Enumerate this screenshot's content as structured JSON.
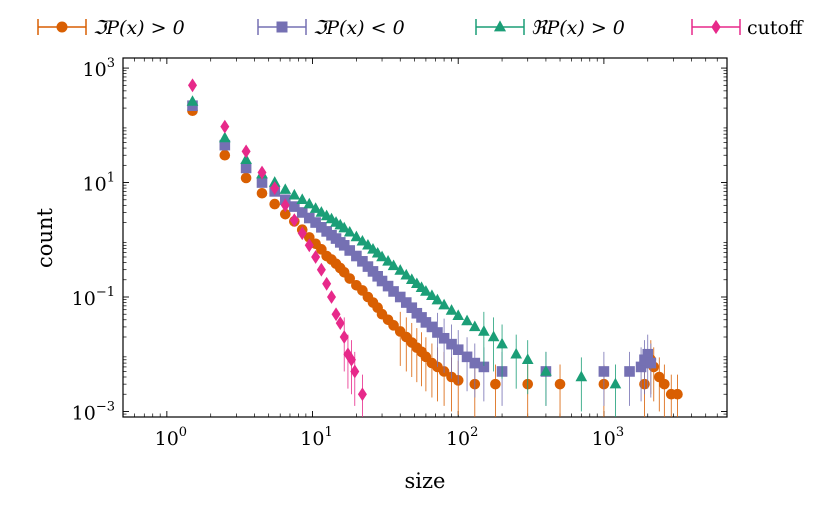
{
  "chart_data": {
    "type": "scatter",
    "xlabel": "size",
    "ylabel": "count",
    "x_scale": "log",
    "y_scale": "log",
    "xlim": [
      0.5,
      7000
    ],
    "ylim": [
      0.0008,
      1500
    ],
    "x_ticks": [
      {
        "value": 1,
        "base": "10",
        "exp": "0"
      },
      {
        "value": 10,
        "base": "10",
        "exp": "1"
      },
      {
        "value": 100,
        "base": "10",
        "exp": "2"
      },
      {
        "value": 1000,
        "base": "10",
        "exp": "3"
      }
    ],
    "y_ticks": [
      {
        "value": 0.001,
        "base": "10",
        "exp": "−3"
      },
      {
        "value": 0.1,
        "base": "10",
        "exp": "−1"
      },
      {
        "value": 10,
        "base": "10",
        "exp": "1"
      },
      {
        "value": 1000,
        "base": "10",
        "exp": "3"
      }
    ],
    "legend_position": "top",
    "series": [
      {
        "name": "ℑP(x) > 0",
        "color": "#d95f02",
        "marker": "circle",
        "points": [
          [
            1.5,
            180
          ],
          [
            2.5,
            30
          ],
          [
            3.5,
            12
          ],
          [
            4.5,
            6.5
          ],
          [
            5.5,
            4.2
          ],
          [
            6.5,
            2.8
          ],
          [
            7.5,
            2.1
          ],
          [
            8.5,
            1.5
          ],
          [
            9.5,
            1.1
          ],
          [
            10.5,
            0.85
          ],
          [
            11.5,
            0.68
          ],
          [
            12.5,
            0.52
          ],
          [
            13.5,
            0.45
          ],
          [
            14.5,
            0.38
          ],
          [
            15.5,
            0.32
          ],
          [
            16.5,
            0.27
          ],
          [
            18,
            0.21
          ],
          [
            20,
            0.16
          ],
          [
            22,
            0.13
          ],
          [
            24,
            0.1
          ],
          [
            26,
            0.08
          ],
          [
            28,
            0.065
          ],
          [
            30,
            0.05
          ],
          [
            33,
            0.04
          ],
          [
            36,
            0.032
          ],
          [
            40,
            0.025
          ],
          [
            44,
            0.02
          ],
          [
            48,
            0.016
          ],
          [
            52,
            0.013
          ],
          [
            56,
            0.011
          ],
          [
            60,
            0.009
          ],
          [
            66,
            0.007
          ],
          [
            72,
            0.006
          ],
          [
            80,
            0.005
          ],
          [
            90,
            0.004
          ],
          [
            100,
            0.0035
          ],
          [
            130,
            0.003
          ],
          [
            180,
            0.003
          ],
          [
            300,
            0.003
          ],
          [
            500,
            0.003
          ],
          [
            1000,
            0.003
          ],
          [
            1900,
            0.003
          ],
          [
            2100,
            0.008
          ],
          [
            2200,
            0.006
          ],
          [
            2400,
            0.004
          ],
          [
            2600,
            0.003
          ],
          [
            2900,
            0.002
          ],
          [
            3200,
            0.002
          ]
        ]
      },
      {
        "name": "ℑP(x) < 0",
        "color": "#7570b3",
        "marker": "square",
        "points": [
          [
            1.5,
            220
          ],
          [
            2.5,
            45
          ],
          [
            3.5,
            18
          ],
          [
            4.5,
            10
          ],
          [
            5.5,
            7
          ],
          [
            6.5,
            5
          ],
          [
            7.5,
            3.8
          ],
          [
            8.5,
            3
          ],
          [
            9.5,
            2.4
          ],
          [
            10.5,
            2
          ],
          [
            11.5,
            1.65
          ],
          [
            12.5,
            1.4
          ],
          [
            13.5,
            1.2
          ],
          [
            14.5,
            1.05
          ],
          [
            15.5,
            0.9
          ],
          [
            16.5,
            0.8
          ],
          [
            18,
            0.65
          ],
          [
            20,
            0.52
          ],
          [
            22,
            0.42
          ],
          [
            24,
            0.34
          ],
          [
            26,
            0.28
          ],
          [
            28,
            0.23
          ],
          [
            30,
            0.19
          ],
          [
            33,
            0.155
          ],
          [
            36,
            0.125
          ],
          [
            40,
            0.1
          ],
          [
            44,
            0.08
          ],
          [
            48,
            0.065
          ],
          [
            52,
            0.052
          ],
          [
            56,
            0.044
          ],
          [
            60,
            0.036
          ],
          [
            66,
            0.03
          ],
          [
            72,
            0.024
          ],
          [
            80,
            0.019
          ],
          [
            90,
            0.015
          ],
          [
            100,
            0.012
          ],
          [
            115,
            0.009
          ],
          [
            130,
            0.007
          ],
          [
            150,
            0.006
          ],
          [
            200,
            0.005
          ],
          [
            400,
            0.005
          ],
          [
            1000,
            0.005
          ],
          [
            1500,
            0.005
          ],
          [
            1800,
            0.006
          ],
          [
            1900,
            0.008
          ],
          [
            2000,
            0.01
          ],
          [
            2100,
            0.007
          ]
        ]
      },
      {
        "name": "ℜP(x) > 0",
        "color": "#1b9e77",
        "marker": "triangle",
        "points": [
          [
            1.5,
            260
          ],
          [
            2.5,
            60
          ],
          [
            3.5,
            25
          ],
          [
            4.5,
            14
          ],
          [
            5.5,
            10
          ],
          [
            6.5,
            7.5
          ],
          [
            7.5,
            6
          ],
          [
            8.5,
            5
          ],
          [
            9.5,
            4.2
          ],
          [
            10.5,
            3.5
          ],
          [
            11.5,
            3
          ],
          [
            12.5,
            2.6
          ],
          [
            13.5,
            2.3
          ],
          [
            14.5,
            2
          ],
          [
            15.5,
            1.8
          ],
          [
            16.5,
            1.6
          ],
          [
            18,
            1.35
          ],
          [
            20,
            1.12
          ],
          [
            22,
            0.94
          ],
          [
            24,
            0.8
          ],
          [
            26,
            0.68
          ],
          [
            28,
            0.58
          ],
          [
            30,
            0.5
          ],
          [
            33,
            0.42
          ],
          [
            36,
            0.35
          ],
          [
            40,
            0.29
          ],
          [
            44,
            0.24
          ],
          [
            48,
            0.2
          ],
          [
            52,
            0.17
          ],
          [
            56,
            0.145
          ],
          [
            60,
            0.125
          ],
          [
            66,
            0.105
          ],
          [
            72,
            0.088
          ],
          [
            80,
            0.072
          ],
          [
            90,
            0.058
          ],
          [
            100,
            0.047
          ],
          [
            115,
            0.038
          ],
          [
            130,
            0.03
          ],
          [
            150,
            0.025
          ],
          [
            175,
            0.02
          ],
          [
            200,
            0.015
          ],
          [
            250,
            0.01
          ],
          [
            300,
            0.008
          ],
          [
            400,
            0.005
          ],
          [
            700,
            0.004
          ],
          [
            1200,
            0.003
          ]
        ]
      },
      {
        "name": "cutoff",
        "color": "#e7298a",
        "marker": "diamond",
        "points": [
          [
            1.5,
            500
          ],
          [
            2.5,
            95
          ],
          [
            3.5,
            35
          ],
          [
            4.5,
            15
          ],
          [
            5.5,
            8
          ],
          [
            6.5,
            4
          ],
          [
            7.5,
            2.2
          ],
          [
            8.5,
            1.3
          ],
          [
            9.5,
            0.8
          ],
          [
            10.5,
            0.5
          ],
          [
            11.5,
            0.3
          ],
          [
            12.5,
            0.17
          ],
          [
            13.5,
            0.1
          ],
          [
            14.5,
            0.05
          ],
          [
            15.5,
            0.035
          ],
          [
            16.5,
            0.02
          ],
          [
            17.5,
            0.01
          ],
          [
            18.5,
            0.008
          ],
          [
            19.5,
            0.005
          ],
          [
            22,
            0.002
          ]
        ]
      }
    ]
  }
}
